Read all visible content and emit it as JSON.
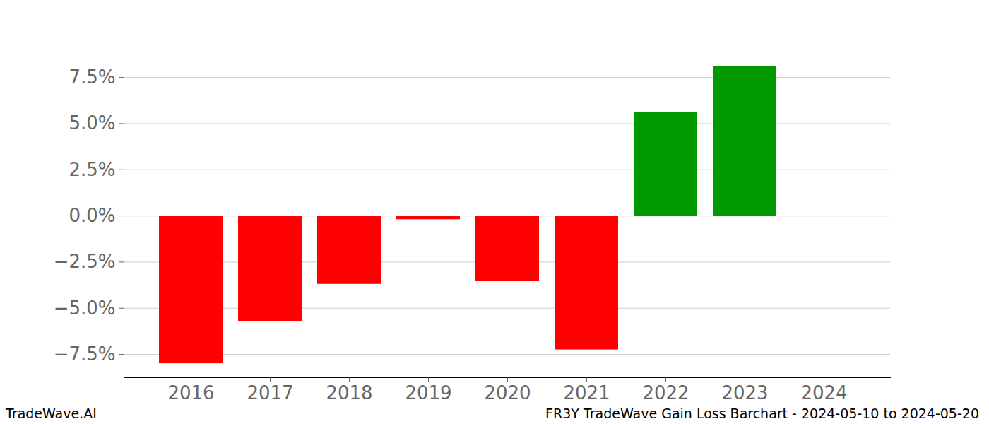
{
  "chart_data": {
    "type": "bar",
    "categories": [
      "2016",
      "2017",
      "2018",
      "2019",
      "2020",
      "2021",
      "2022",
      "2023",
      "2024"
    ],
    "values": [
      -8.0,
      -5.7,
      -3.7,
      -0.2,
      -3.55,
      -7.25,
      5.6,
      8.1,
      0
    ],
    "colors": [
      "#ff0000",
      "#ff0000",
      "#ff0000",
      "#ff0000",
      "#ff0000",
      "#ff0000",
      "#009900",
      "#009900",
      "#009900"
    ],
    "ylim": [
      -8.76,
      8.92
    ],
    "yticks": [
      {
        "value": -7.5,
        "label": "−7.5%"
      },
      {
        "value": -5,
        "label": "−5.0%"
      },
      {
        "value": -2.5,
        "label": "−2.5%"
      },
      {
        "value": 0,
        "label": "0.0%"
      },
      {
        "value": 2.5,
        "label": "2.5%"
      },
      {
        "value": 5,
        "label": "5.0%"
      },
      {
        "value": 7.5,
        "label": "7.5%"
      }
    ],
    "grid": true,
    "annotations": [
      "TradeWave.AI",
      "FR3Y TradeWave Gain Loss Barchart - 2024-05-10 to 2024-05-20"
    ]
  }
}
